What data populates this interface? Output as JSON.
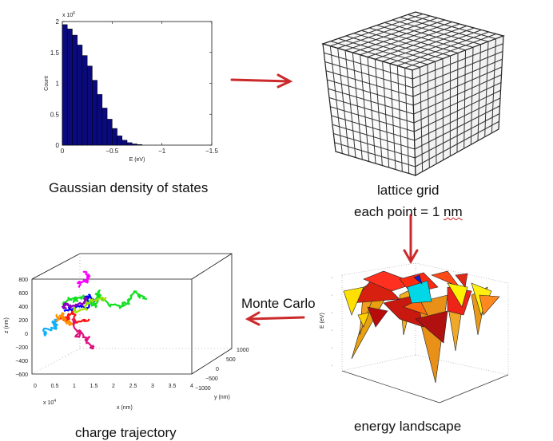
{
  "captions": {
    "dos": "Gaussian density of states",
    "lattice_line1": "lattice grid",
    "lattice_line2_prefix": "each point = 1 ",
    "lattice_line2_unit": "nm",
    "energy": "energy landscape",
    "monte_carlo": "Monte Carlo",
    "trajectory": "charge trajectory"
  },
  "colors": {
    "bar_fill": "#0a0a7e",
    "arrow": "#cc2a2a"
  },
  "chart_data": {
    "type": "bar",
    "title": "",
    "xlabel": "E (eV)",
    "ylabel": "Count",
    "y_multiplier_label": "x 10",
    "y_multiplier_exp": "6",
    "xlim": [
      0,
      -1.5
    ],
    "ylim": [
      0,
      2
    ],
    "xticks": [
      "0",
      "−0.5",
      "−1",
      "−1.5"
    ],
    "yticks": [
      "0",
      "0.5",
      "1",
      "1.5",
      "2"
    ],
    "bin_width": 0.05,
    "bins_left": [
      0,
      -0.05,
      -0.1,
      -0.15,
      -0.2,
      -0.25,
      -0.3,
      -0.35,
      -0.4,
      -0.45,
      -0.5,
      -0.55,
      -0.6,
      -0.65,
      -0.7,
      -0.75
    ],
    "values": [
      1.95,
      1.88,
      1.78,
      1.62,
      1.45,
      1.28,
      1.05,
      0.82,
      0.6,
      0.42,
      0.27,
      0.15,
      0.08,
      0.04,
      0.02,
      0.01
    ]
  },
  "trajectory_axes": {
    "z_label": "z (nm)",
    "x_label": "x (nm)",
    "y_label": "y (nm)",
    "x_multiplier": "x 10",
    "x_multiplier_exp": "4",
    "z_ticks": [
      "800",
      "600",
      "400",
      "200",
      "0",
      "−200",
      "−400",
      "−600"
    ],
    "x_ticks": [
      "0",
      "0.5",
      "1",
      "1.5",
      "2",
      "2.5",
      "3",
      "3.5",
      "4"
    ],
    "y_ticks": [
      "1000",
      "500",
      "0",
      "−500",
      "−1000"
    ]
  },
  "energy_axes": {
    "z_label": "E (eV)"
  }
}
